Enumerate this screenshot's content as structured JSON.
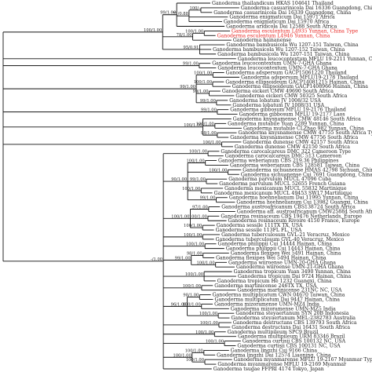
{
  "tips": [
    "Ganoderma thailandicum HKAS 104641 Thailand",
    "Ganoderma casuarinicola Dai 16336 Guangdong, China",
    "Ganoderma casuarinicola Dai 16339 Guangdong, China",
    "Ganoderma enigmaticum Dai 15971 Africa",
    "Ganoderma enigmaticum Dai 15970 Africa",
    "Ganoderma aridicola Dai 12588 South Africa",
    "Ganoderma esculentum L4935 Yunnan, China Type",
    "Ganoderma esculentum L4946 Yunnan, China",
    "Ganoderma hainanense",
    "Ganoderma bambusicola Wu 1207-151 Taiwan, China",
    "Ganoderma bambusicola Wu 1207-152 Taiwan, China",
    "Ganoderma bambusicola Wu 1207-151 Taiwan, China",
    "Ganoderma leucocontextum MFLU 19-2211 Yunnan, China",
    "Ganoderma leucocontextum UMN-7-GHA Ghana",
    "Ganoderma leucocontextum UMN-7-GHA Ghana",
    "Ganoderma adspersum GACP15061220 Thailand",
    "Ganoderma adspersum MFLU19-2178 Thailand",
    "Ganoderma ellipsoideum GACP14081215 Hainan, China",
    "Ganoderma ellipsoideum GACP1408966 Hainan, China",
    "Ganoderma eickeri CMW 49690 South Africa",
    "Ganoderma eickeri CMW 50325 South Africa",
    "Ganoderma lobatum JV 1008/32 USA",
    "Ganoderma lobatum JV 1008/31 USA",
    "Ganoderma gibbosum MFLU 19-2176 Thailand",
    "Ganoderma gibbosum MFLU 19-2177 Laos",
    "Ganoderma knysnamense CMW 48146 South Africa",
    "Ganoderma mutabile Yuan 2289 Yunnan, China",
    "Ganoderma mutabile CLZhao 982 Yunnan, China",
    "Ganoderma knysnamense CMW 47755 South Africa Type",
    "Ganoderma knysnamense CMW 47756 South Africa",
    "Ganoderma dunense CMW 42157 South Africa",
    "Ganoderma dunense CMW 42150 South Africa",
    "Ganoderma carocalcareus DMC 322 Cameroon Type",
    "Ganoderma carocalcareus DMC 513 Cameroon",
    "Ganoderma weberianum CBS 219.36 Philippines",
    "Ganoderma weberianum CBS 128581 Taiwan, China",
    "Ganoderma sichuanense HMAS 42798 Sichuan, China Type",
    "Ganoderma sichuanense Cui 7691 Guangdong, China",
    "Ganoderma parvulum MUCL 47096 Cuba",
    "Ganoderma parvulum MUCL 52655 French Guiana",
    "Ganoderma mexicanum MUCL 55832 Martinique",
    "Ganoderma mexicanum MUCL 49453 SW17 Martinique",
    "Ganoderma hoehnelianum Dai 11995 Yunnan, China",
    "Ganoderma hoehnelianum Cui 13982 Guangxi, China",
    "Ganoderma austroafricanum CBS138724 South Africa",
    "Ganoderma aff. austroafricanum CMW25884 South Africa",
    "Ganoderma resinaceum CBS 19476 Netherlands, Europe",
    "Ganoderma resinaceum Rivoire 4150 France, Europe",
    "Ganoderma sessile 111TX TX, USA",
    "Ganoderma sessile 113FL FL, USA",
    "Ganoderma tuberculosum GVL-21 Veracruz, Mexico",
    "Ganoderma tuberculosum GVL-40 Veracruz, Mexico",
    "Ganoderma philippii Cui 14444 Hainan, China",
    "Ganoderma philippii Cui 14443 Hainan, China",
    "Ganoderma flexipes Wei 5491 Hainan, China",
    "Ganoderma flexipes Wei 5494 Hainan, China",
    "Ganoderma wiiroense UMN-20-GHA Ghana",
    "Ganoderma wiiroense UMN-21-GHA Ghana",
    "Ganoderma tropicum Yuan 3490 Yunnan, China",
    "Ganoderma tropicum Dai 9724 Hainan, China",
    "Ganoderma tropicum He 1232 Guangxi, China",
    "Ganoderma martinicense 246TX TX, USA",
    "Ganoderma martinicense 231NC NC, USA",
    "Ganoderma multiplicatum CWN 04670 Taiwan, China",
    "Ganoderma multiplicatum Dai 9447 Hainan, China",
    "Ganoderma mizoramense UMN-MZ4 India",
    "Ganoderma mizoramense UMN-MZ5 India",
    "Ganoderma steyaertanum SYN 20B Indonesia",
    "Ganoderma steyaertanum MEL:2382783 Australia",
    "Ganoderma destructans CBS 139793 South Africa",
    "Ganoderma destructans Dai 16431 South Africa",
    "Ganoderma multipileum SPC9 Brazil",
    "Ganoderma multipileum URM 83346 Brazil",
    "Ganoderma curtisii CBS 100132 NC, USA",
    "Ganoderma curtisii CBS 100131 NC, USA",
    "Ganoderma lingzhi Cui 9166 China",
    "Ganoderma lingzhi Dai 12574 Liaoning, China",
    "Ganoderma myanmarense MFLU 19-2167 Myanmar Type",
    "Ganoderma myanmarense MFLU 19-2169 Myanmar",
    "Ganoderma tsugae FFPRI 4174 Tokyo, Japan"
  ],
  "highlighted_tips": [
    6,
    7
  ],
  "clade_supports": [
    {
      "label": "100/-",
      "clade": [
        1,
        2
      ]
    },
    {
      "label": "71/0.88",
      "clade": [
        1,
        4
      ]
    },
    {
      "label": "99/1.00",
      "clade": [
        0,
        5
      ]
    },
    {
      "label": "100/1.00",
      "clade": [
        6,
        7
      ]
    },
    {
      "label": "78/1.00",
      "clade": [
        6,
        8
      ]
    },
    {
      "label": "95/0.91",
      "clade": [
        9,
        11
      ]
    },
    {
      "label": "100/1.00",
      "clade": [
        0,
        11
      ]
    },
    {
      "label": "99/1.00",
      "clade": [
        13,
        14
      ]
    },
    {
      "label": "100/1.00",
      "clade": [
        15,
        16
      ]
    },
    {
      "label": "100/1.00",
      "clade": [
        17,
        18
      ]
    },
    {
      "label": "99/1.00",
      "clade": [
        19,
        20
      ]
    },
    {
      "label": "99/1.00",
      "clade": [
        21,
        22
      ]
    },
    {
      "label": "99/1.00",
      "clade": [
        15,
        22
      ]
    },
    {
      "label": "99/1.00",
      "clade": [
        23,
        24
      ]
    },
    {
      "label": "100/1.00",
      "clade": [
        26,
        27
      ]
    },
    {
      "label": "98/1.00",
      "clade": [
        28,
        29
      ]
    },
    {
      "label": "100/1.00",
      "clade": [
        25,
        29
      ]
    },
    {
      "label": "100/1.00",
      "clade": [
        30,
        31
      ]
    },
    {
      "label": "100/1.00",
      "clade": [
        32,
        33
      ]
    },
    {
      "label": "100/1.00",
      "clade": [
        34,
        35
      ]
    },
    {
      "label": "100/1.00",
      "clade": [
        36,
        37
      ]
    },
    {
      "label": "99/1.00",
      "clade": [
        38,
        39
      ]
    },
    {
      "label": "100/1.00",
      "clade": [
        40,
        41
      ]
    },
    {
      "label": "99/1.00",
      "clade": [
        42,
        43
      ]
    },
    {
      "label": "90/1.00",
      "clade": [
        34,
        43
      ]
    },
    {
      "label": "97/1.00",
      "clade": [
        44,
        45
      ]
    },
    {
      "label": "100/1.00",
      "clade": [
        46,
        47
      ]
    },
    {
      "label": "100/1.00",
      "clade": [
        48,
        49
      ]
    },
    {
      "label": "100/1.00",
      "clade": [
        44,
        49
      ]
    },
    {
      "label": "100/1.00",
      "clade": [
        50,
        51
      ]
    },
    {
      "label": "100/1.00",
      "clade": [
        52,
        53
      ]
    },
    {
      "label": "98/1.00",
      "clade": [
        54,
        55
      ]
    },
    {
      "label": "100/1.00",
      "clade": [
        56,
        57
      ]
    },
    {
      "label": "99/1.00",
      "clade": [
        54,
        57
      ]
    },
    {
      "label": "100/1.00",
      "clade": [
        58,
        60
      ]
    },
    {
      "label": "100/1.00",
      "clade": [
        61,
        62
      ]
    },
    {
      "label": "98/1.00",
      "clade": [
        63,
        64
      ]
    },
    {
      "label": "100/1.00",
      "clade": [
        65,
        66
      ]
    },
    {
      "label": "100/1.00",
      "clade": [
        67,
        68
      ]
    },
    {
      "label": "96/1.00",
      "clade": [
        63,
        68
      ]
    },
    {
      "label": "100/1.00",
      "clade": [
        69,
        70
      ]
    },
    {
      "label": "100/1.00",
      "clade": [
        71,
        72
      ]
    },
    {
      "label": "100/1.00",
      "clade": [
        73,
        74
      ]
    },
    {
      "label": "100/1.00",
      "clade": [
        75,
        76
      ]
    },
    {
      "label": "100/1.00",
      "clade": [
        77,
        78
      ]
    },
    {
      "label": "100/1.00",
      "clade": [
        75,
        78
      ]
    },
    {
      "label": "-/1.00",
      "clade": [
        32,
        79
      ]
    }
  ]
}
